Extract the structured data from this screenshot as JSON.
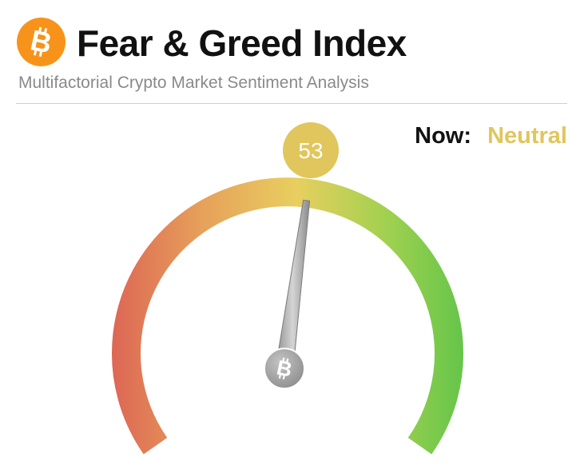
{
  "header": {
    "logo_icon": "bitcoin-icon",
    "title": "Fear & Greed Index",
    "subtitle": "Multifactorial Crypto Market Sentiment Analysis"
  },
  "status": {
    "now_label": "Now:",
    "now_value": "Neutral",
    "value": "53",
    "value_color": "#e0c65c"
  },
  "gauge": {
    "min": 0,
    "max": 100,
    "value": 53,
    "needle_icon": "bitcoin-icon",
    "gradient_colors": [
      "#dd6655",
      "#e6a05a",
      "#e8cf5f",
      "#9fd04f",
      "#62c54a"
    ]
  }
}
